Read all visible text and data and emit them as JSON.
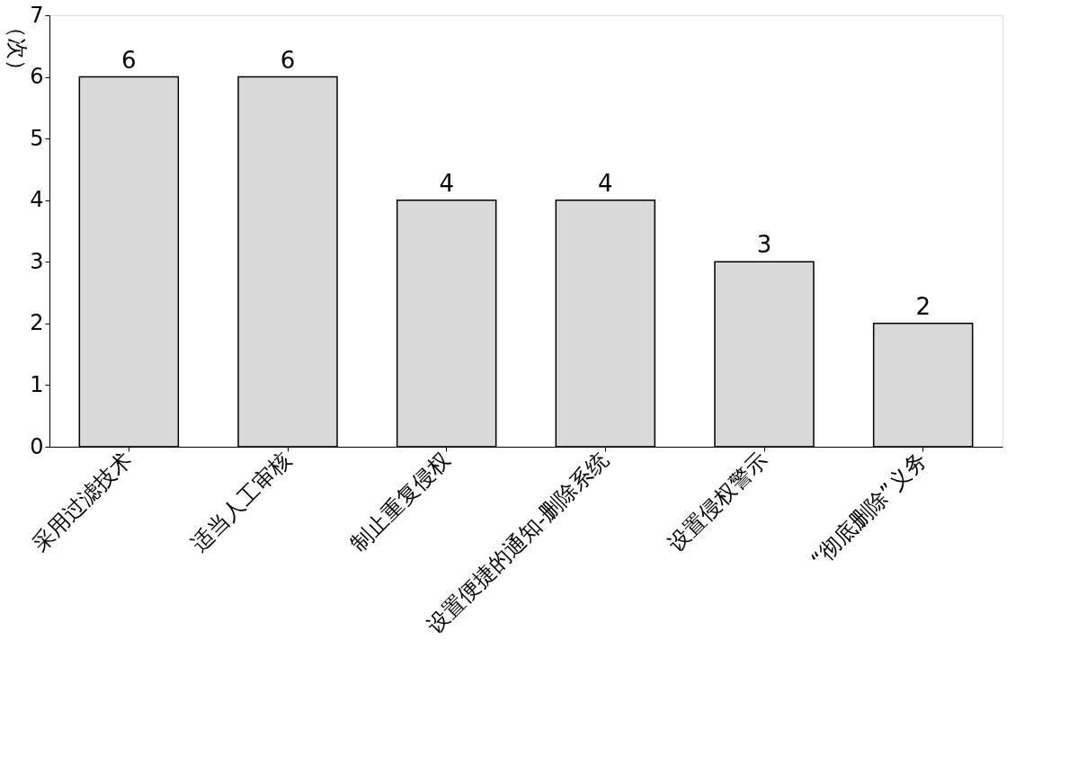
{
  "chart_data": {
    "type": "bar",
    "ylabel": "（次）",
    "categories": [
      "采用过滤技术",
      "适当人工审核",
      "制止重复侵权",
      "设置便捷的通知-删除系统",
      "设置侵权警示",
      "“彻底删除”义务"
    ],
    "values": [
      6,
      6,
      4,
      4,
      3,
      2
    ],
    "color": "#d9d9d9",
    "ylim": [
      0,
      7
    ],
    "yticks": [
      0,
      1,
      2,
      3,
      4,
      5,
      6,
      7
    ],
    "grid": false,
    "data_labels": true
  }
}
